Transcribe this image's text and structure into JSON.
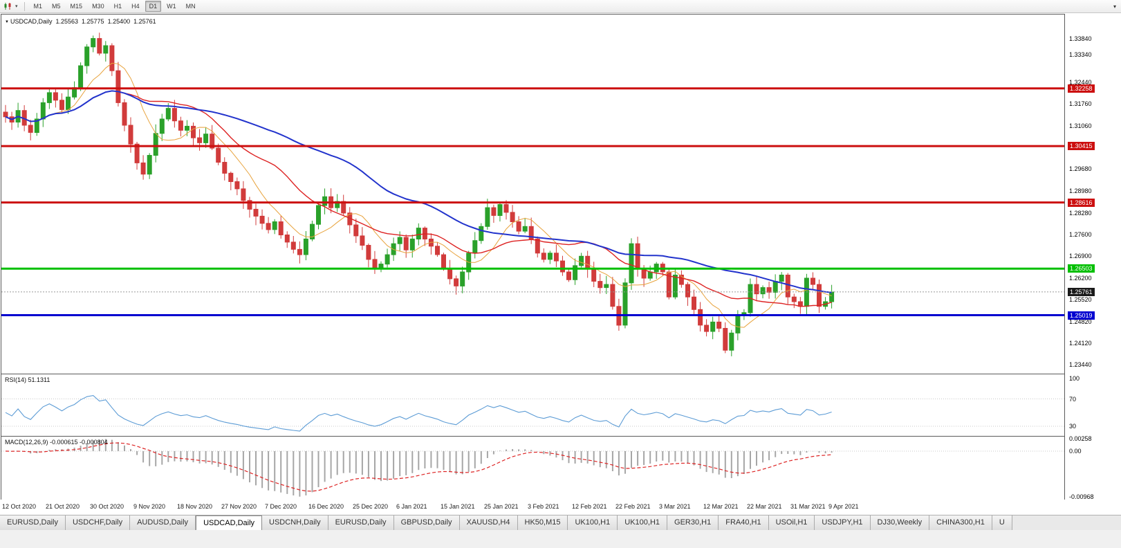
{
  "toolbar": {
    "timeframes": [
      "M1",
      "M5",
      "M15",
      "M30",
      "H1",
      "H4",
      "D1",
      "W1",
      "MN"
    ],
    "active": "D1"
  },
  "chart": {
    "symbol_label": "USDCAD,Daily",
    "ohlc": {
      "open": "1.25563",
      "high": "1.25775",
      "low": "1.25400",
      "close": "1.25761"
    },
    "current_price": "1.25761",
    "levels": [
      {
        "label": "1.32258",
        "value": 1.32258,
        "color": "#cc0f0f"
      },
      {
        "label": "1.30415",
        "value": 1.30415,
        "color": "#cc0f0f"
      },
      {
        "label": "1.28616",
        "value": 1.28616,
        "color": "#cc0f0f"
      },
      {
        "label": "1.26503",
        "value": 1.26503,
        "color": "#00bf00"
      },
      {
        "label": "1.25019",
        "value": 1.25019,
        "color": "#0000d0"
      }
    ],
    "y_ticks": [
      "1.33840",
      "1.33340",
      "1.32440",
      "1.31760",
      "1.31060",
      "1.29680",
      "1.28980",
      "1.28280",
      "1.27600",
      "1.26900",
      "1.26200",
      "1.25520",
      "1.24820",
      "1.24120",
      "1.23440"
    ],
    "x_labels": [
      "12 Oct 2020",
      "21 Oct 2020",
      "30 Oct 2020",
      "9 Nov 2020",
      "18 Nov 2020",
      "27 Nov 2020",
      "7 Dec 2020",
      "16 Dec 2020",
      "25 Dec 2020",
      "6 Jan 2021",
      "15 Jan 2021",
      "25 Jan 2021",
      "3 Feb 2021",
      "12 Feb 2021",
      "22 Feb 2021",
      "3 Mar 2021",
      "12 Mar 2021",
      "22 Mar 2021",
      "31 Mar 2021",
      "9 Apr 2021"
    ]
  },
  "rsi_panel": {
    "label": "RSI(14) 51.1311",
    "axis": [
      {
        "label": "100",
        "value": 100
      },
      {
        "label": "70",
        "value": 70
      },
      {
        "label": "30",
        "value": 30
      }
    ]
  },
  "macd_panel": {
    "label": "MACD(12,26,9) -0.000615 -0.000804",
    "axis": [
      {
        "label": "0.00258",
        "value": 0.00258
      },
      {
        "label": "0.00",
        "value": 0
      },
      {
        "label": "-0.00968",
        "value": -0.00968
      }
    ]
  },
  "tabs": [
    {
      "label": "EURUSD,Daily",
      "active": false
    },
    {
      "label": "USDCHF,Daily",
      "active": false
    },
    {
      "label": "AUDUSD,Daily",
      "active": false
    },
    {
      "label": "USDCAD,Daily",
      "active": true
    },
    {
      "label": "USDCNH,Daily",
      "active": false
    },
    {
      "label": "EURUSD,Daily",
      "active": false
    },
    {
      "label": "GBPUSD,Daily",
      "active": false
    },
    {
      "label": "XAUUSD,H4",
      "active": false
    },
    {
      "label": "HK50,M15",
      "active": false
    },
    {
      "label": "UK100,H1",
      "active": false
    },
    {
      "label": "UK100,H1",
      "active": false
    },
    {
      "label": "GER30,H1",
      "active": false
    },
    {
      "label": "FRA40,H1",
      "active": false
    },
    {
      "label": "USOil,H1",
      "active": false
    },
    {
      "label": "USDJPY,H1",
      "active": false
    },
    {
      "label": "DJ30,Weekly",
      "active": false
    },
    {
      "label": "CHINA300,H1",
      "active": false
    },
    {
      "label": "U",
      "active": false
    }
  ],
  "chart_data": {
    "type": "candlestick",
    "symbol": "USDCAD",
    "timeframe": "Daily",
    "title": "USDCAD,Daily 1.25563 1.25775 1.25400 1.25761",
    "visible_range": {
      "price_min": 1.2344,
      "price_max": 1.3384,
      "date_start": "12 Oct 2020",
      "date_end": "9 Apr 2021"
    },
    "last_bar": {
      "open": 1.25563,
      "high": 1.25775,
      "low": 1.254,
      "close": 1.25761
    },
    "closes": [
      1.3135,
      1.3118,
      1.3155,
      1.3108,
      1.3085,
      1.3128,
      1.318,
      1.3212,
      1.3188,
      1.3158,
      1.3198,
      1.3228,
      1.3298,
      1.3358,
      1.3385,
      1.3338,
      1.3362,
      1.3282,
      1.318,
      1.3108,
      1.3048,
      1.2988,
      1.2952,
      1.3012,
      1.3082,
      1.3128,
      1.3162,
      1.3122,
      1.3092,
      1.3105,
      1.3068,
      1.3052,
      1.308,
      1.3035,
      1.299,
      1.2955,
      1.2928,
      1.2905,
      1.2868,
      1.284,
      1.2818,
      1.2795,
      1.2775,
      1.28,
      1.2758,
      1.2735,
      1.2712,
      1.2695,
      1.2745,
      1.2792,
      1.2852,
      1.288,
      1.2845,
      1.2865,
      1.2828,
      1.279,
      1.2755,
      1.2725,
      1.268,
      1.265,
      1.2665,
      1.2695,
      1.273,
      1.275,
      1.271,
      1.2745,
      1.278,
      1.2745,
      1.2722,
      1.2695,
      1.265,
      1.2618,
      1.2595,
      1.264,
      1.27,
      1.274,
      1.2785,
      1.2845,
      1.282,
      1.2855,
      1.283,
      1.28,
      1.277,
      1.2785,
      1.2745,
      1.27,
      1.268,
      1.27,
      1.2675,
      1.264,
      1.2615,
      1.266,
      1.269,
      1.265,
      1.261,
      1.259,
      1.26,
      1.253,
      1.247,
      1.2605,
      1.273,
      1.265,
      1.262,
      1.264,
      1.2665,
      1.264,
      1.256,
      1.263,
      1.26,
      1.256,
      1.252,
      1.247,
      1.245,
      1.248,
      1.246,
      1.239,
      1.2445,
      1.25,
      1.251,
      1.26,
      1.257,
      1.259,
      1.2575,
      1.261,
      1.263,
      1.256,
      1.2545,
      1.253,
      1.262,
      1.26,
      1.253,
      1.2545,
      1.2576
    ],
    "moving_averages": [
      {
        "period": 8,
        "color": "#e8a33d",
        "width": 1
      },
      {
        "period": 20,
        "color": "#dd2222",
        "width": 1.4
      },
      {
        "period": 44,
        "color": "#2233cc",
        "width": 2
      }
    ],
    "horizontal_levels": [
      1.32258,
      1.30415,
      1.28616,
      1.26503,
      1.25019
    ],
    "indicators": {
      "rsi": {
        "period": 14,
        "current": 51.1311,
        "levels": [
          100,
          70,
          30
        ]
      },
      "macd": {
        "fast": 12,
        "slow": 26,
        "signal": 9,
        "current": -0.000615,
        "current_signal": -0.000804,
        "scale_max": 0.00258,
        "scale_min": -0.00968
      }
    },
    "colors": {
      "up": "#2aa12a",
      "down": "#d13b3b",
      "rsi_line": "#5b9bd5",
      "indicator_grid": "#c8c8c8",
      "macd_hist": "#a6a6a6",
      "macd_signal": "#dd2222",
      "current_price_line": "#999999",
      "current_tag_bg": "#1a1a1a"
    }
  }
}
